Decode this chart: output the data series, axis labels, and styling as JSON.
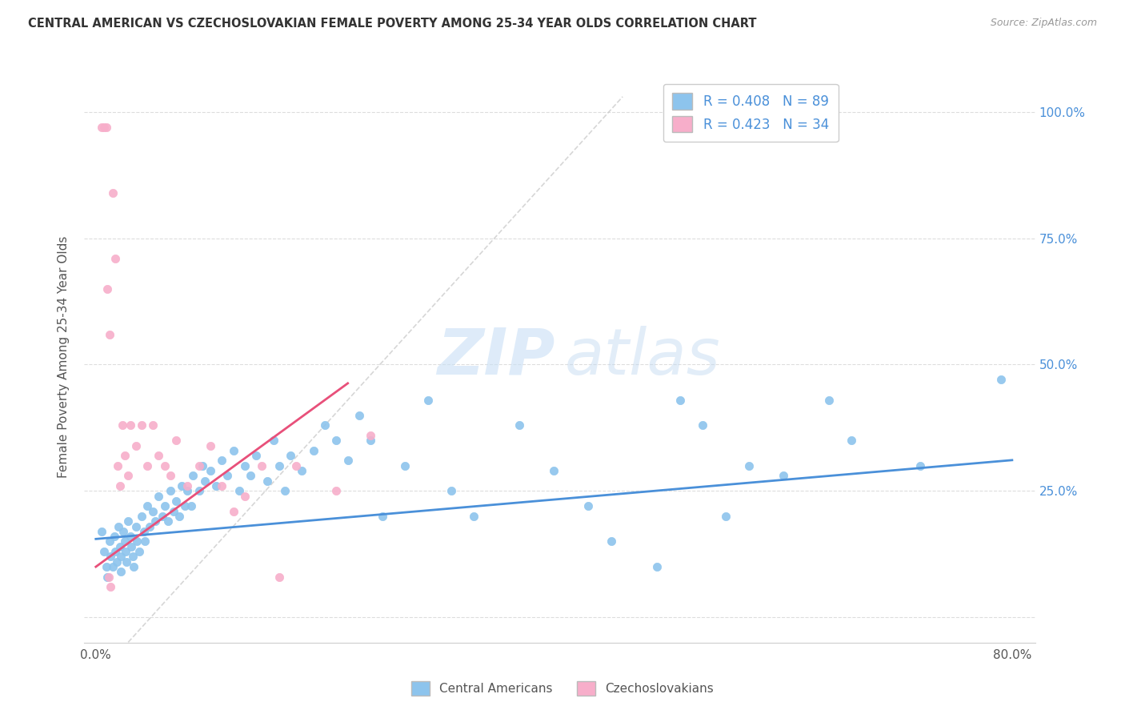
{
  "title": "CENTRAL AMERICAN VS CZECHOSLOVAKIAN FEMALE POVERTY AMONG 25-34 YEAR OLDS CORRELATION CHART",
  "source": "Source: ZipAtlas.com",
  "ylabel": "Female Poverty Among 25-34 Year Olds",
  "xlim": [
    -0.01,
    0.82
  ],
  "ylim": [
    -0.05,
    1.08
  ],
  "xtick_positions": [
    0.0,
    0.1,
    0.2,
    0.3,
    0.4,
    0.5,
    0.6,
    0.7,
    0.8
  ],
  "xticklabels": [
    "0.0%",
    "",
    "",
    "",
    "",
    "",
    "",
    "",
    "80.0%"
  ],
  "ytick_positions": [
    0.0,
    0.25,
    0.5,
    0.75,
    1.0
  ],
  "yticklabels_right": [
    "",
    "25.0%",
    "50.0%",
    "75.0%",
    "100.0%"
  ],
  "r_blue": 0.408,
  "n_blue": 89,
  "r_pink": 0.423,
  "n_pink": 34,
  "color_blue": "#8DC4ED",
  "color_pink": "#F7AECA",
  "color_blue_text": "#4A90D9",
  "line_blue": "#4A90D9",
  "line_pink": "#E8507A",
  "line_dashed_color": "#CCCCCC",
  "blue_scatter_x": [
    0.005,
    0.007,
    0.009,
    0.01,
    0.012,
    0.013,
    0.015,
    0.016,
    0.017,
    0.018,
    0.02,
    0.021,
    0.022,
    0.022,
    0.024,
    0.025,
    0.026,
    0.027,
    0.028,
    0.03,
    0.031,
    0.032,
    0.033,
    0.035,
    0.036,
    0.038,
    0.04,
    0.042,
    0.043,
    0.045,
    0.047,
    0.05,
    0.052,
    0.055,
    0.058,
    0.06,
    0.063,
    0.065,
    0.068,
    0.07,
    0.073,
    0.075,
    0.078,
    0.08,
    0.083,
    0.085,
    0.09,
    0.093,
    0.095,
    0.1,
    0.105,
    0.11,
    0.115,
    0.12,
    0.125,
    0.13,
    0.135,
    0.14,
    0.15,
    0.155,
    0.16,
    0.165,
    0.17,
    0.18,
    0.19,
    0.2,
    0.21,
    0.22,
    0.23,
    0.24,
    0.25,
    0.27,
    0.29,
    0.31,
    0.33,
    0.37,
    0.4,
    0.43,
    0.45,
    0.49,
    0.51,
    0.53,
    0.55,
    0.57,
    0.6,
    0.64,
    0.66,
    0.72,
    0.79
  ],
  "blue_scatter_y": [
    0.17,
    0.13,
    0.1,
    0.08,
    0.15,
    0.12,
    0.1,
    0.16,
    0.13,
    0.11,
    0.18,
    0.14,
    0.12,
    0.09,
    0.17,
    0.15,
    0.13,
    0.11,
    0.19,
    0.16,
    0.14,
    0.12,
    0.1,
    0.18,
    0.15,
    0.13,
    0.2,
    0.17,
    0.15,
    0.22,
    0.18,
    0.21,
    0.19,
    0.24,
    0.2,
    0.22,
    0.19,
    0.25,
    0.21,
    0.23,
    0.2,
    0.26,
    0.22,
    0.25,
    0.22,
    0.28,
    0.25,
    0.3,
    0.27,
    0.29,
    0.26,
    0.31,
    0.28,
    0.33,
    0.25,
    0.3,
    0.28,
    0.32,
    0.27,
    0.35,
    0.3,
    0.25,
    0.32,
    0.29,
    0.33,
    0.38,
    0.35,
    0.31,
    0.4,
    0.35,
    0.2,
    0.3,
    0.43,
    0.25,
    0.2,
    0.38,
    0.29,
    0.22,
    0.15,
    0.1,
    0.43,
    0.38,
    0.2,
    0.3,
    0.28,
    0.43,
    0.35,
    0.3,
    0.47
  ],
  "pink_scatter_x": [
    0.005,
    0.007,
    0.009,
    0.011,
    0.013,
    0.015,
    0.017,
    0.019,
    0.021,
    0.023,
    0.01,
    0.012,
    0.025,
    0.028,
    0.03,
    0.035,
    0.04,
    0.045,
    0.05,
    0.055,
    0.06,
    0.065,
    0.07,
    0.08,
    0.09,
    0.1,
    0.11,
    0.12,
    0.13,
    0.145,
    0.16,
    0.175,
    0.21,
    0.24
  ],
  "pink_scatter_y": [
    0.97,
    0.97,
    0.97,
    0.08,
    0.06,
    0.84,
    0.71,
    0.3,
    0.26,
    0.38,
    0.65,
    0.56,
    0.32,
    0.28,
    0.38,
    0.34,
    0.38,
    0.3,
    0.38,
    0.32,
    0.3,
    0.28,
    0.35,
    0.26,
    0.3,
    0.34,
    0.26,
    0.21,
    0.24,
    0.3,
    0.08,
    0.3,
    0.25,
    0.36
  ],
  "blue_trend_x": [
    0.0,
    0.8
  ],
  "blue_trend_y_intercept": 0.155,
  "blue_trend_slope": 0.195,
  "pink_trend_x_start": 0.0,
  "pink_trend_x_end": 0.22,
  "pink_trend_y_intercept": 0.1,
  "pink_trend_slope": 1.65
}
